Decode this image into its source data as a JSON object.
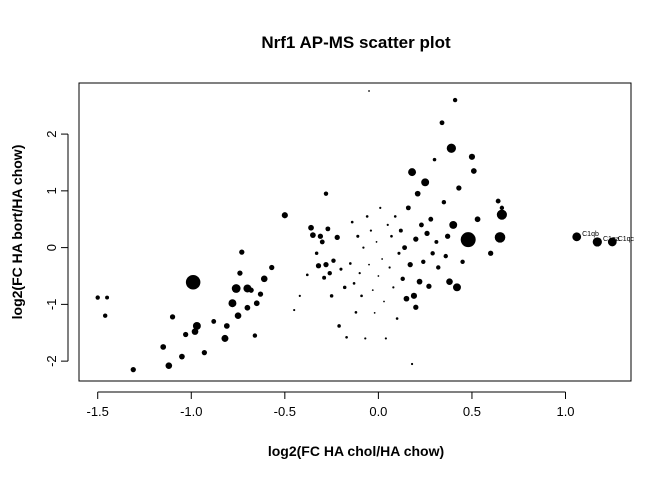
{
  "chart_data": {
    "type": "scatter",
    "title": "Nrf1 AP-MS scatter plot",
    "xlabel": "log2(FC HA chol/HA chow)",
    "ylabel": "log2(FC HA bort/HA chow)",
    "xlim": [
      -1.6,
      1.35
    ],
    "ylim": [
      -2.35,
      2.9
    ],
    "xticks": [
      -1.5,
      -1.0,
      -0.5,
      0.0,
      0.5,
      1.0
    ],
    "xtick_labels": [
      "-1.5",
      "-1.0",
      "-0.5",
      "0.0",
      "0.5",
      "1.0"
    ],
    "yticks": [
      -2,
      -1,
      0,
      1,
      2
    ],
    "ytick_labels": [
      "-2",
      "-1",
      "0",
      "1",
      "2"
    ],
    "grid": false,
    "marker_color": "#000000",
    "points": [
      {
        "x": -1.5,
        "y": -0.88,
        "s": 1.0
      },
      {
        "x": -1.45,
        "y": -0.88,
        "s": 0.9
      },
      {
        "x": -1.46,
        "y": -1.2,
        "s": 1.0
      },
      {
        "x": -1.31,
        "y": -2.15,
        "s": 1.2
      },
      {
        "x": -1.15,
        "y": -1.75,
        "s": 1.3
      },
      {
        "x": -1.12,
        "y": -2.08,
        "s": 1.5
      },
      {
        "x": -1.1,
        "y": -1.22,
        "s": 1.2
      },
      {
        "x": -1.05,
        "y": -1.92,
        "s": 1.3
      },
      {
        "x": -1.03,
        "y": -1.53,
        "s": 1.2
      },
      {
        "x": -0.99,
        "y": -0.61,
        "s": 3.3
      },
      {
        "x": -0.98,
        "y": -1.48,
        "s": 1.5
      },
      {
        "x": -0.97,
        "y": -1.38,
        "s": 1.8
      },
      {
        "x": -0.93,
        "y": -1.85,
        "s": 1.2
      },
      {
        "x": -0.88,
        "y": -1.3,
        "s": 1.1
      },
      {
        "x": -0.82,
        "y": -1.6,
        "s": 1.6
      },
      {
        "x": -0.81,
        "y": -1.38,
        "s": 1.3
      },
      {
        "x": -0.78,
        "y": -0.98,
        "s": 1.8
      },
      {
        "x": -0.76,
        "y": -0.72,
        "s": 2.0
      },
      {
        "x": -0.75,
        "y": -1.2,
        "s": 1.5
      },
      {
        "x": -0.74,
        "y": -0.45,
        "s": 1.2
      },
      {
        "x": -0.73,
        "y": -0.08,
        "s": 1.2
      },
      {
        "x": -0.7,
        "y": -0.72,
        "s": 1.8
      },
      {
        "x": -0.7,
        "y": -1.06,
        "s": 1.3
      },
      {
        "x": -0.68,
        "y": -0.75,
        "s": 1.2
      },
      {
        "x": -0.66,
        "y": -1.55,
        "s": 1.0
      },
      {
        "x": -0.65,
        "y": -0.98,
        "s": 1.3
      },
      {
        "x": -0.63,
        "y": -0.82,
        "s": 1.2
      },
      {
        "x": -0.61,
        "y": -0.55,
        "s": 1.5
      },
      {
        "x": -0.57,
        "y": -0.35,
        "s": 1.2
      },
      {
        "x": -0.5,
        "y": 0.57,
        "s": 1.4
      },
      {
        "x": -0.45,
        "y": -1.1,
        "s": 0.5
      },
      {
        "x": -0.42,
        "y": -0.85,
        "s": 0.5
      },
      {
        "x": -0.38,
        "y": -0.48,
        "s": 0.6
      },
      {
        "x": -0.36,
        "y": 0.35,
        "s": 1.3
      },
      {
        "x": -0.35,
        "y": 0.22,
        "s": 1.3
      },
      {
        "x": -0.33,
        "y": -0.1,
        "s": 0.8
      },
      {
        "x": -0.32,
        "y": -0.32,
        "s": 1.2
      },
      {
        "x": -0.31,
        "y": 0.2,
        "s": 1.2
      },
      {
        "x": -0.3,
        "y": 0.1,
        "s": 1.1
      },
      {
        "x": -0.29,
        "y": -0.53,
        "s": 0.9
      },
      {
        "x": -0.28,
        "y": -0.3,
        "s": 1.2
      },
      {
        "x": -0.28,
        "y": 0.95,
        "s": 1.0
      },
      {
        "x": -0.27,
        "y": 0.33,
        "s": 1.1
      },
      {
        "x": -0.26,
        "y": -0.45,
        "s": 1.0
      },
      {
        "x": -0.25,
        "y": -0.85,
        "s": 0.8
      },
      {
        "x": -0.24,
        "y": -0.23,
        "s": 1.0
      },
      {
        "x": -0.22,
        "y": 0.18,
        "s": 1.2
      },
      {
        "x": -0.21,
        "y": -1.38,
        "s": 0.8
      },
      {
        "x": -0.2,
        "y": -0.38,
        "s": 0.7
      },
      {
        "x": -0.18,
        "y": -0.7,
        "s": 0.8
      },
      {
        "x": -0.17,
        "y": -1.58,
        "s": 0.6
      },
      {
        "x": -0.15,
        "y": -0.28,
        "s": 0.6
      },
      {
        "x": -0.14,
        "y": 0.45,
        "s": 0.6
      },
      {
        "x": -0.13,
        "y": -0.63,
        "s": 0.6
      },
      {
        "x": -0.12,
        "y": -1.14,
        "s": 0.6
      },
      {
        "x": -0.11,
        "y": 0.2,
        "s": 0.7
      },
      {
        "x": -0.1,
        "y": -0.45,
        "s": 0.5
      },
      {
        "x": -0.09,
        "y": -0.85,
        "s": 0.6
      },
      {
        "x": -0.08,
        "y": 0.0,
        "s": 0.5
      },
      {
        "x": -0.07,
        "y": -1.6,
        "s": 0.5
      },
      {
        "x": -0.06,
        "y": 0.55,
        "s": 0.6
      },
      {
        "x": -0.05,
        "y": -0.3,
        "s": 0.4
      },
      {
        "x": -0.04,
        "y": 0.3,
        "s": 0.5
      },
      {
        "x": -0.03,
        "y": -0.75,
        "s": 0.4
      },
      {
        "x": -0.02,
        "y": -1.15,
        "s": 0.4
      },
      {
        "x": -0.01,
        "y": 0.1,
        "s": 0.4
      },
      {
        "x": 0.0,
        "y": -0.5,
        "s": 0.4
      },
      {
        "x": 0.01,
        "y": 0.7,
        "s": 0.5
      },
      {
        "x": 0.02,
        "y": -0.2,
        "s": 0.4
      },
      {
        "x": 0.03,
        "y": -0.95,
        "s": 0.4
      },
      {
        "x": 0.04,
        "y": -1.6,
        "s": 0.5
      },
      {
        "x": 0.05,
        "y": 0.4,
        "s": 0.5
      },
      {
        "x": 0.06,
        "y": -0.35,
        "s": 0.5
      },
      {
        "x": 0.07,
        "y": 0.2,
        "s": 0.6
      },
      {
        "x": 0.08,
        "y": -0.7,
        "s": 0.5
      },
      {
        "x": 0.09,
        "y": 0.55,
        "s": 0.6
      },
      {
        "x": 0.1,
        "y": -1.25,
        "s": 0.6
      },
      {
        "x": 0.11,
        "y": -0.1,
        "s": 0.7
      },
      {
        "x": 0.12,
        "y": 0.3,
        "s": 0.9
      },
      {
        "x": 0.13,
        "y": -0.55,
        "s": 1.0
      },
      {
        "x": 0.14,
        "y": 0.0,
        "s": 1.1
      },
      {
        "x": 0.15,
        "y": -0.9,
        "s": 1.3
      },
      {
        "x": 0.16,
        "y": 0.7,
        "s": 1.1
      },
      {
        "x": 0.17,
        "y": -0.3,
        "s": 1.2
      },
      {
        "x": 0.18,
        "y": 1.33,
        "s": 1.8
      },
      {
        "x": 0.19,
        "y": -0.85,
        "s": 1.4
      },
      {
        "x": 0.2,
        "y": 0.15,
        "s": 1.2
      },
      {
        "x": 0.2,
        "y": -1.05,
        "s": 1.2
      },
      {
        "x": 0.21,
        "y": 0.95,
        "s": 1.3
      },
      {
        "x": 0.22,
        "y": -0.6,
        "s": 1.3
      },
      {
        "x": 0.23,
        "y": 0.4,
        "s": 1.1
      },
      {
        "x": 0.24,
        "y": -0.25,
        "s": 1.0
      },
      {
        "x": 0.25,
        "y": 1.15,
        "s": 1.8
      },
      {
        "x": 0.26,
        "y": 0.25,
        "s": 1.2
      },
      {
        "x": 0.27,
        "y": -0.68,
        "s": 1.2
      },
      {
        "x": 0.28,
        "y": 0.5,
        "s": 1.1
      },
      {
        "x": 0.29,
        "y": -0.1,
        "s": 1.0
      },
      {
        "x": 0.3,
        "y": 1.55,
        "s": 0.8
      },
      {
        "x": 0.31,
        "y": 0.1,
        "s": 0.9
      },
      {
        "x": 0.32,
        "y": -0.35,
        "s": 1.0
      },
      {
        "x": 0.34,
        "y": 2.2,
        "s": 1.1
      },
      {
        "x": 0.35,
        "y": 0.8,
        "s": 1.0
      },
      {
        "x": 0.36,
        "y": -0.15,
        "s": 1.0
      },
      {
        "x": 0.37,
        "y": 0.2,
        "s": 1.2
      },
      {
        "x": 0.38,
        "y": -0.6,
        "s": 1.5
      },
      {
        "x": 0.39,
        "y": 1.75,
        "s": 2.1
      },
      {
        "x": 0.4,
        "y": 0.4,
        "s": 1.8
      },
      {
        "x": 0.41,
        "y": 2.6,
        "s": 1.0
      },
      {
        "x": 0.42,
        "y": -0.7,
        "s": 1.8
      },
      {
        "x": 0.43,
        "y": 1.05,
        "s": 1.2
      },
      {
        "x": 0.45,
        "y": -0.25,
        "s": 1.0
      },
      {
        "x": 0.48,
        "y": 0.14,
        "s": 3.4
      },
      {
        "x": 0.5,
        "y": 1.6,
        "s": 1.4
      },
      {
        "x": 0.51,
        "y": 1.35,
        "s": 1.3
      },
      {
        "x": 0.53,
        "y": 0.5,
        "s": 1.3
      },
      {
        "x": 0.6,
        "y": -0.1,
        "s": 1.2
      },
      {
        "x": 0.64,
        "y": 0.82,
        "s": 1.1
      },
      {
        "x": 0.65,
        "y": 0.18,
        "s": 2.4
      },
      {
        "x": 0.66,
        "y": 0.58,
        "s": 2.3
      },
      {
        "x": 0.66,
        "y": 0.7,
        "s": 1.0
      },
      {
        "x": 0.18,
        "y": -2.05,
        "s": 0.5
      },
      {
        "x": -0.05,
        "y": 2.76,
        "s": 0.4
      },
      {
        "x": 1.06,
        "y": 0.19,
        "s": 2.0,
        "label": "C1qb"
      },
      {
        "x": 1.17,
        "y": 0.1,
        "s": 2.1,
        "label": "C1qa"
      },
      {
        "x": 1.25,
        "y": 0.1,
        "s": 2.0,
        "label": "C1qc"
      }
    ]
  }
}
